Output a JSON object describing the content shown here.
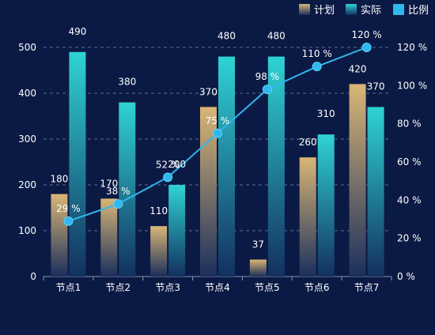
{
  "chart_data": {
    "type": "bar",
    "categories": [
      "节点1",
      "节点2",
      "节点3",
      "节点4",
      "节点5",
      "节点6",
      "节点7"
    ],
    "series": [
      {
        "name": "计划",
        "type": "bar",
        "axis": "left",
        "values": [
          180,
          170,
          110,
          370,
          37,
          260,
          420
        ]
      },
      {
        "name": "实际",
        "type": "bar",
        "axis": "left",
        "values": [
          490,
          380,
          200,
          480,
          480,
          310,
          370
        ]
      },
      {
        "name": "比例",
        "type": "line",
        "axis": "right",
        "values": [
          29,
          38,
          52,
          75,
          98,
          110,
          120
        ]
      }
    ],
    "y_left": {
      "min": 0,
      "max": 500,
      "ticks": [
        0,
        100,
        200,
        300,
        400,
        500
      ]
    },
    "y_right": {
      "min": 0,
      "max": 120,
      "ticks": [
        "0 %",
        "20 %",
        "40 %",
        "60 %",
        "80 %",
        "100 %",
        "120 %"
      ],
      "tick_values": [
        0,
        20,
        40,
        60,
        80,
        100,
        120
      ]
    },
    "ratio_label_suffix": " %",
    "grid": "dashed horizontal",
    "legend_position": "top-right",
    "colors": {
      "plan_top": "#d9b676",
      "plan_bottom": "#1b2f5c",
      "actual_top": "#2fd3d3",
      "actual_bottom": "#13305e",
      "line": "#2fb8ee",
      "text": "#ffffff",
      "grid": "#5d6c8f",
      "axis": "#8a96b3",
      "background": "#0b1a44"
    }
  }
}
